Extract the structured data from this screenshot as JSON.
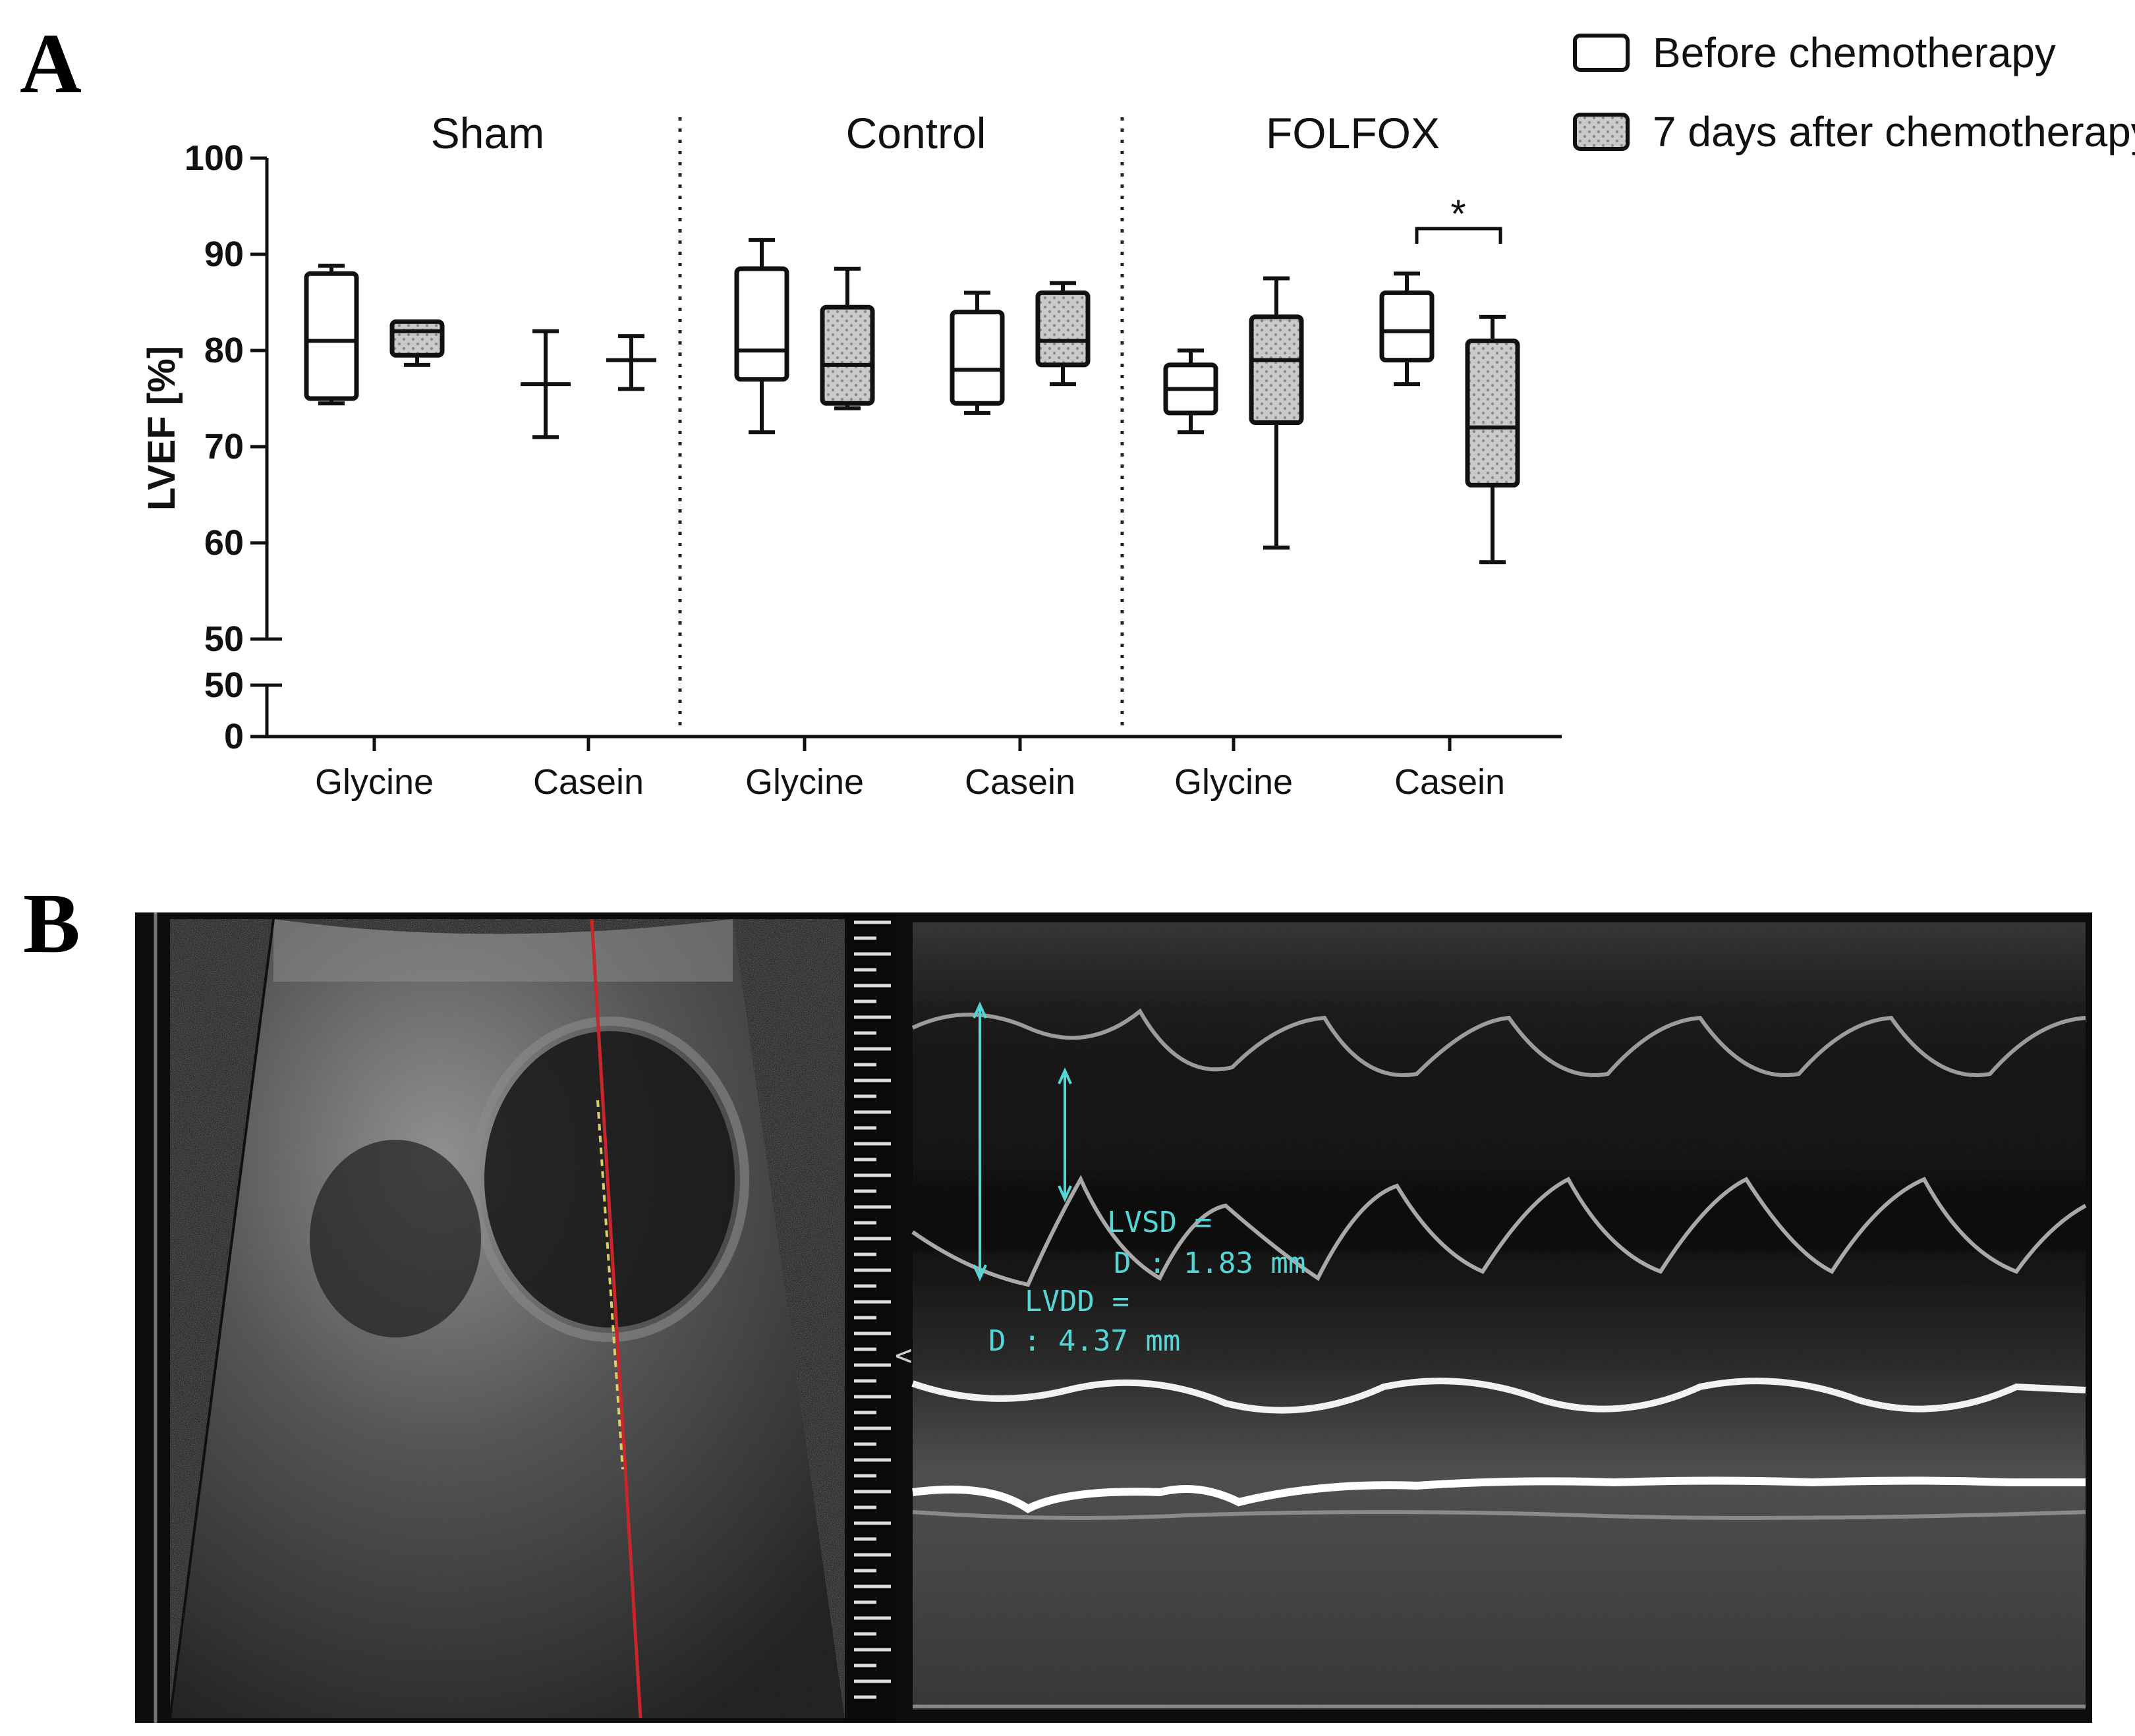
{
  "panel_a_letter": "A",
  "panel_b_letter": "B",
  "chart_data": {
    "type": "box",
    "ylabel": "LVEF [%]",
    "yticks_upper": [
      50,
      60,
      70,
      80,
      90,
      100
    ],
    "yticks_lower": [
      0,
      50
    ],
    "ylim": [
      50,
      100
    ],
    "axis_break": true,
    "grid": false,
    "legend_position": "top-right",
    "groups": [
      "Sham",
      "Control",
      "FOLFOX"
    ],
    "categories": [
      "Glycine",
      "Casein",
      "Glycine",
      "Casein",
      "Glycine",
      "Casein"
    ],
    "series": [
      {
        "name": "Before chemotherapy",
        "fill": "#ffffff",
        "boxes": [
          {
            "group": "Sham",
            "category": "Glycine",
            "min": 74.5,
            "q1": 75,
            "median": 81,
            "q3": 88,
            "max": 88.8
          },
          {
            "group": "Sham",
            "category": "Casein",
            "min": 71,
            "q1": 76.5,
            "median": 76.5,
            "q3": 76.5,
            "max": 82
          },
          {
            "group": "Control",
            "category": "Glycine",
            "min": 71.5,
            "q1": 77,
            "median": 80,
            "q3": 88.5,
            "max": 91.5
          },
          {
            "group": "Control",
            "category": "Casein",
            "min": 73.5,
            "q1": 74.5,
            "median": 78,
            "q3": 84,
            "max": 86
          },
          {
            "group": "FOLFOX",
            "category": "Glycine",
            "min": 71.5,
            "q1": 73.5,
            "median": 76,
            "q3": 78.5,
            "max": 80
          },
          {
            "group": "FOLFOX",
            "category": "Casein",
            "min": 76.5,
            "q1": 79,
            "median": 82,
            "q3": 86,
            "max": 88
          }
        ]
      },
      {
        "name": "7 days after chemotherapy",
        "fill": "#c9c9c9",
        "boxes": [
          {
            "group": "Sham",
            "category": "Glycine",
            "min": 78.5,
            "q1": 79.5,
            "median": 82,
            "q3": 83,
            "max": 83
          },
          {
            "group": "Sham",
            "category": "Casein",
            "min": 76,
            "q1": 79,
            "median": 79,
            "q3": 79,
            "max": 81.5
          },
          {
            "group": "Control",
            "category": "Glycine",
            "min": 74,
            "q1": 74.5,
            "median": 78.5,
            "q3": 84.5,
            "max": 88.5
          },
          {
            "group": "Control",
            "category": "Casein",
            "min": 76.5,
            "q1": 78.5,
            "median": 81,
            "q3": 86,
            "max": 87
          },
          {
            "group": "FOLFOX",
            "category": "Glycine",
            "min": 59.5,
            "q1": 72.5,
            "median": 79,
            "q3": 83.5,
            "max": 87.5
          },
          {
            "group": "FOLFOX",
            "category": "Casein",
            "min": 58,
            "q1": 66,
            "median": 72,
            "q3": 81,
            "max": 83.5
          }
        ]
      }
    ],
    "annotations": [
      {
        "text": "*",
        "group": "FOLFOX",
        "category": "Casein"
      }
    ]
  },
  "echo": {
    "lvsd_label": "LVSD =",
    "lvsd_value": "D : 1.83 mm",
    "lvdd_label": "LVDD =",
    "lvdd_value": "D : 4.37 mm",
    "cursor_marker": "<",
    "colors": {
      "measure": "#55d6d6",
      "scanline": "#c8262b",
      "dotted": "#d8cf6a"
    }
  }
}
